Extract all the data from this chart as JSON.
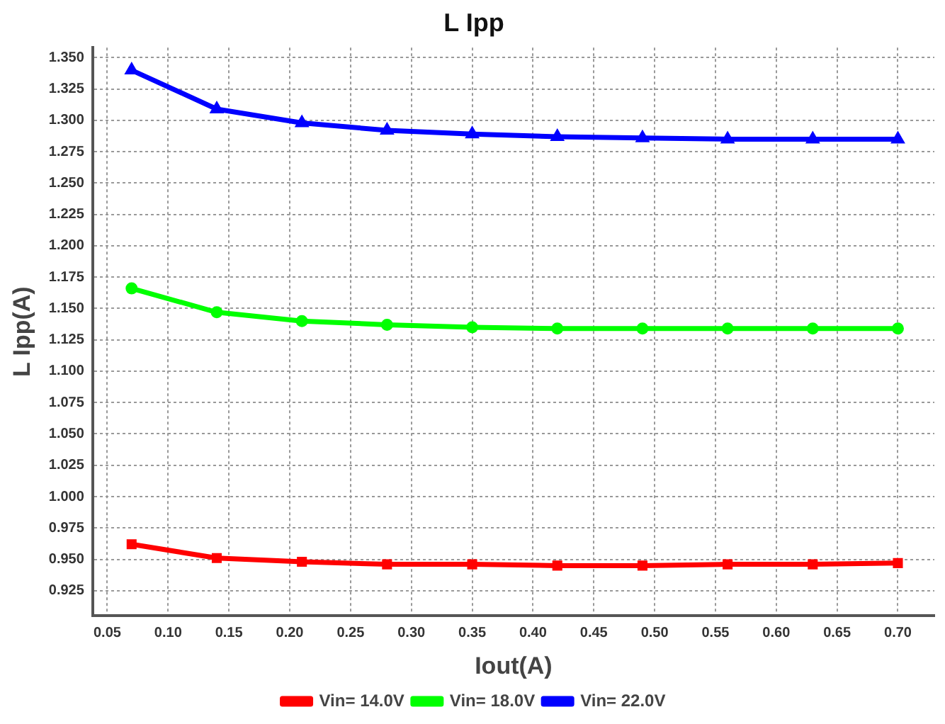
{
  "chart_data": {
    "type": "line",
    "title": "L Ipp",
    "xlabel": "Iout(A)",
    "ylabel": "L Ipp(A)",
    "x": [
      0.07,
      0.14,
      0.21,
      0.28,
      0.35,
      0.42,
      0.49,
      0.56,
      0.63,
      0.7
    ],
    "series": [
      {
        "name": "Vin= 14.0V",
        "color": "#ff0000",
        "marker": "square",
        "values": [
          0.962,
          0.951,
          0.948,
          0.946,
          0.946,
          0.945,
          0.945,
          0.946,
          0.946,
          0.947
        ]
      },
      {
        "name": "Vin= 18.0V",
        "color": "#00ff00",
        "marker": "circle",
        "values": [
          1.166,
          1.147,
          1.14,
          1.137,
          1.135,
          1.134,
          1.134,
          1.134,
          1.134,
          1.134
        ]
      },
      {
        "name": "Vin= 22.0V",
        "color": "#0000ff",
        "marker": "triangle",
        "values": [
          1.34,
          1.309,
          1.298,
          1.292,
          1.289,
          1.287,
          1.286,
          1.285,
          1.285,
          1.285
        ]
      }
    ],
    "xlim": [
      0.038,
      0.73
    ],
    "xticks": [
      0.05,
      {
        "value": 0.1,
        "label": "0.10"
      },
      0.15,
      {
        "value": 0.2,
        "label": "0.20"
      },
      0.25,
      {
        "value": 0.3,
        "label": "0.30"
      },
      0.35,
      {
        "value": 0.4,
        "label": "0.40"
      },
      0.45,
      {
        "value": 0.5,
        "label": "0.50"
      },
      0.55,
      {
        "value": 0.6,
        "label": "0.60"
      },
      0.65,
      {
        "value": 0.7,
        "label": "0.70"
      }
    ],
    "ylim": [
      0.905,
      1.358
    ],
    "yticks": [
      0.925,
      {
        "value": 0.95,
        "label": "0.950"
      },
      0.975,
      {
        "value": 1,
        "label": "1.000"
      },
      1.025,
      {
        "value": 1.05,
        "label": "1.050"
      },
      1.075,
      {
        "value": 1.1,
        "label": "1.100"
      },
      1.125,
      {
        "value": 1.15,
        "label": "1.150"
      },
      1.175,
      {
        "value": 1.2,
        "label": "1.200"
      },
      1.225,
      {
        "value": 1.25,
        "label": "1.250"
      },
      1.275,
      {
        "value": 1.3,
        "label": "1.300"
      },
      1.325,
      {
        "value": 1.35,
        "label": "1.350"
      }
    ],
    "grid": true,
    "legend": "bottom",
    "line_style": "solid"
  }
}
